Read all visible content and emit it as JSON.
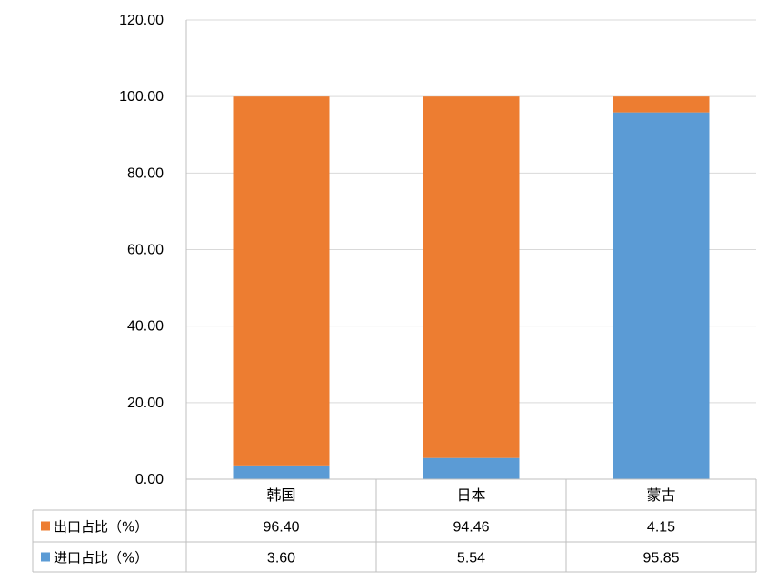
{
  "chart_data": {
    "type": "bar",
    "stacked": true,
    "categories": [
      "韩国",
      "日本",
      "蒙古"
    ],
    "series": [
      {
        "name": "进口占比（%）",
        "values": [
          3.6,
          5.54,
          95.85
        ],
        "color": "#5B9BD5"
      },
      {
        "name": "出口占比（%）",
        "values": [
          96.4,
          94.46,
          4.15
        ],
        "color": "#ED7D31"
      }
    ],
    "table_rows": [
      {
        "label": "出口占比（%）",
        "values": [
          "96.40",
          "94.46",
          "4.15"
        ],
        "color": "#ED7D31"
      },
      {
        "label": "进口占比（%）",
        "values": [
          "3.60",
          "5.54",
          "95.85"
        ],
        "color": "#5B9BD5"
      }
    ],
    "yticks": [
      "0.00",
      "20.00",
      "40.00",
      "60.00",
      "80.00",
      "100.00",
      "120.00"
    ],
    "ylim": [
      0,
      120
    ],
    "grid": true,
    "legend": "data-table"
  }
}
